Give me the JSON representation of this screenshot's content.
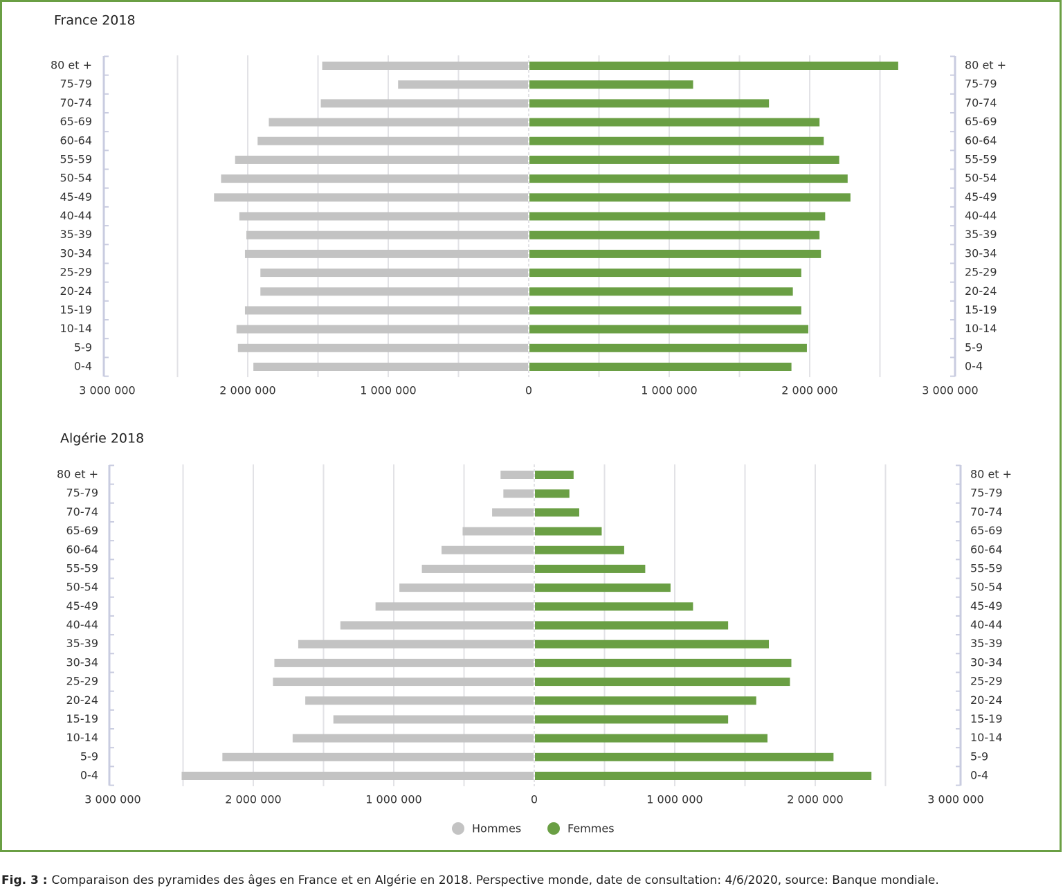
{
  "chart_data": [
    {
      "type": "pyramid",
      "title": "France 2018",
      "categories": [
        "80 et +",
        "75-79",
        "70-74",
        "65-69",
        "60-64",
        "55-59",
        "50-54",
        "45-49",
        "40-44",
        "35-39",
        "30-34",
        "25-29",
        "20-24",
        "15-19",
        "10-14",
        "5-9",
        "0-4"
      ],
      "series": [
        {
          "name": "Hommes",
          "color": "#c3c3c3",
          "side": "left",
          "values": [
            1470000,
            930000,
            1480000,
            1850000,
            1930000,
            2090000,
            2190000,
            2240000,
            2060000,
            2010000,
            2020000,
            1910000,
            1910000,
            2020000,
            2080000,
            2070000,
            1960000
          ]
        },
        {
          "name": "Femmes",
          "color": "#6a9f44",
          "side": "right",
          "values": [
            2630000,
            1170000,
            1710000,
            2070000,
            2100000,
            2210000,
            2270000,
            2290000,
            2110000,
            2070000,
            2080000,
            1940000,
            1880000,
            1940000,
            1990000,
            1980000,
            1870000
          ]
        }
      ],
      "xlim": [
        -3000000,
        3000000
      ],
      "xticks": [
        {
          "value": -3000000,
          "label": "3 000 000"
        },
        {
          "value": -2000000,
          "label": "2 000 000"
        },
        {
          "value": -1000000,
          "label": "1 000 000"
        },
        0,
        {
          "value": 1000000,
          "label": "1 000 000"
        },
        {
          "value": 2000000,
          "label": "2 000 000"
        },
        {
          "value": 3000000,
          "label": "3 000 000"
        }
      ],
      "xgrid": [
        -2500000,
        -2000000,
        -1500000,
        -1000000,
        -500000,
        0,
        500000,
        1000000,
        1500000,
        2000000,
        2500000
      ]
    },
    {
      "type": "pyramid",
      "title": "Algérie 2018",
      "categories": [
        "80 et +",
        "75-79",
        "70-74",
        "65-69",
        "60-64",
        "55-59",
        "50-54",
        "45-49",
        "40-44",
        "35-39",
        "30-34",
        "25-29",
        "20-24",
        "15-19",
        "10-14",
        "5-9",
        "0-4"
      ],
      "series": [
        {
          "name": "Hommes",
          "color": "#c3c3c3",
          "side": "left",
          "values": [
            240000,
            220000,
            300000,
            510000,
            660000,
            800000,
            960000,
            1130000,
            1380000,
            1680000,
            1850000,
            1860000,
            1630000,
            1430000,
            1720000,
            2220000,
            2510000
          ]
        },
        {
          "name": "Femmes",
          "color": "#6a9f44",
          "side": "right",
          "values": [
            280000,
            250000,
            320000,
            480000,
            640000,
            790000,
            970000,
            1130000,
            1380000,
            1670000,
            1830000,
            1820000,
            1580000,
            1380000,
            1660000,
            2130000,
            2400000
          ]
        }
      ],
      "xlim": [
        -3000000,
        3000000
      ],
      "xticks": [
        {
          "value": -3000000,
          "label": "3 000 000"
        },
        {
          "value": -2000000,
          "label": "2 000 000"
        },
        {
          "value": -1000000,
          "label": "1 000 000"
        },
        0,
        {
          "value": 1000000,
          "label": "1 000 000"
        },
        {
          "value": 2000000,
          "label": "2 000 000"
        },
        {
          "value": 3000000,
          "label": "3 000 000"
        }
      ],
      "xgrid": [
        -2500000,
        -2000000,
        -1500000,
        -1000000,
        -500000,
        0,
        500000,
        1000000,
        1500000,
        2000000,
        2500000
      ]
    }
  ],
  "caption": {
    "label": "Fig. 3 :",
    "text": "Comparaison des pyramides des âges en France et en Algérie en 2018. Perspective monde, date de consultation: 4/6/2020, source: Banque mondiale."
  }
}
